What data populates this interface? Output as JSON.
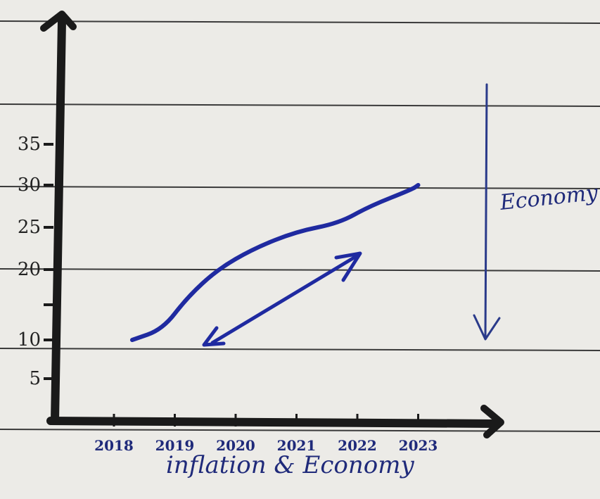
{
  "chart_data": {
    "type": "line",
    "title": "",
    "xlabel": "inflation & Economy",
    "ylabel": "",
    "categories": [
      "2018",
      "2019",
      "2020",
      "2021",
      "2022",
      "2023"
    ],
    "y_ticks": [
      {
        "value": 5,
        "label": "5"
      },
      {
        "value": 10,
        "label": "10"
      },
      {
        "value": 20,
        "label": "20"
      },
      {
        "value": 25,
        "label": "25"
      },
      {
        "value": 30,
        "label": "30"
      },
      {
        "value": 35,
        "label": "35"
      }
    ],
    "series": [
      {
        "name": "",
        "points": [
          {
            "x": 2018.3,
            "y": 10
          },
          {
            "x": 2018.8,
            "y": 11.5
          },
          {
            "x": 2019.2,
            "y": 16
          },
          {
            "x": 2019.7,
            "y": 20
          },
          {
            "x": 2020.3,
            "y": 22.5
          },
          {
            "x": 2021.0,
            "y": 24.5
          },
          {
            "x": 2021.7,
            "y": 25.5
          },
          {
            "x": 2022.2,
            "y": 27.5
          },
          {
            "x": 2022.9,
            "y": 29.5
          },
          {
            "x": 2023.0,
            "y": 30
          }
        ]
      }
    ],
    "annotations": {
      "side_label": "Economy",
      "colors": {
        "ink": "#1f2aa0",
        "axis": "#1a1a1a",
        "rule_line": "#3a3a3a"
      }
    },
    "grid": false,
    "legend": "none"
  }
}
